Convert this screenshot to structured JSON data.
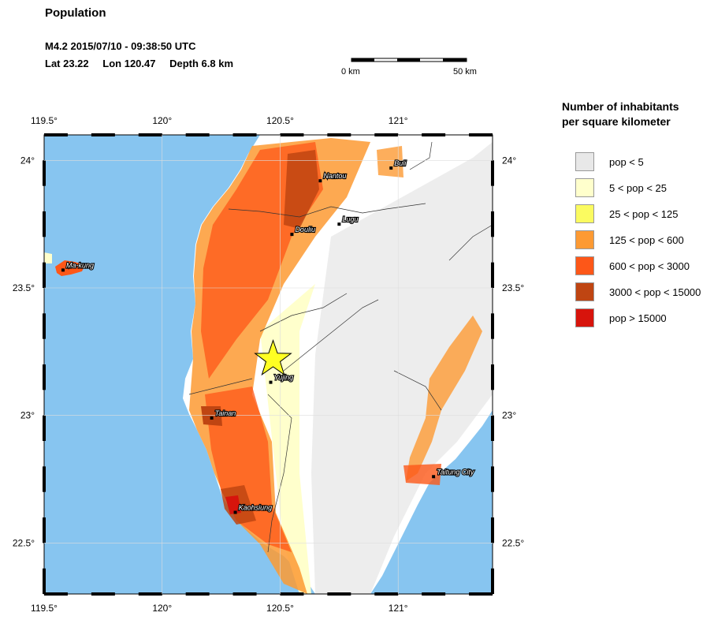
{
  "title": "Population",
  "event": {
    "line1": "M4.2  2015/07/10 - 09:38:50 UTC",
    "lat": "Lat 23.22",
    "lon": "Lon 120.47",
    "depth": "Depth  6.8 km",
    "epicenter": {
      "lon": 120.47,
      "lat": 23.22
    }
  },
  "scale_bar": {
    "start_label": "0 km",
    "end_label": "50 km"
  },
  "map": {
    "lon_range": [
      119.5,
      121.4
    ],
    "lat_range": [
      22.3,
      24.1
    ],
    "lon_ticks": [
      {
        "value": 119.5,
        "label": "119.5°"
      },
      {
        "value": 120.0,
        "label": "120°"
      },
      {
        "value": 120.5,
        "label": "120.5°"
      },
      {
        "value": 121.0,
        "label": "121°"
      }
    ],
    "lat_ticks": [
      {
        "value": 22.5,
        "label": "22.5°"
      },
      {
        "value": 23.0,
        "label": "23°"
      },
      {
        "value": 23.5,
        "label": "23.5°"
      },
      {
        "value": 24.0,
        "label": "24°"
      }
    ],
    "colors": {
      "sea": "#87c5f0",
      "land": "#ffffff",
      "star": "#ffff22"
    },
    "cities": [
      {
        "name": "Nantou",
        "lon": 120.67,
        "lat": 23.92
      },
      {
        "name": "Buli",
        "lon": 120.97,
        "lat": 23.97
      },
      {
        "name": "Douliu",
        "lon": 120.55,
        "lat": 23.71
      },
      {
        "name": "Lugu",
        "lon": 120.75,
        "lat": 23.75
      },
      {
        "name": "Ma-kung",
        "lon": 119.58,
        "lat": 23.57
      },
      {
        "name": "Yujing",
        "lon": 120.46,
        "lat": 23.13
      },
      {
        "name": "Tainan",
        "lon": 120.21,
        "lat": 22.99
      },
      {
        "name": "Kaohsiung",
        "lon": 120.31,
        "lat": 22.62
      },
      {
        "name": "Taitung City",
        "lon": 121.15,
        "lat": 22.76
      }
    ]
  },
  "legend": {
    "title_line1": "Number of inhabitants",
    "title_line2": "per square kilometer",
    "items": [
      {
        "label": "pop < 5",
        "color": "#e8e8e8"
      },
      {
        "label": "5 < pop < 25",
        "color": "#ffffcc"
      },
      {
        "label": "25 < pop < 125",
        "color": "#fbfb60"
      },
      {
        "label": "125 < pop < 600",
        "color": "#fd9a33"
      },
      {
        "label": "600 < pop < 3000",
        "color": "#fd5718"
      },
      {
        "label": "3000 < pop < 15000",
        "color": "#bf4512"
      },
      {
        "label": "pop > 15000",
        "color": "#d7140c"
      }
    ]
  }
}
